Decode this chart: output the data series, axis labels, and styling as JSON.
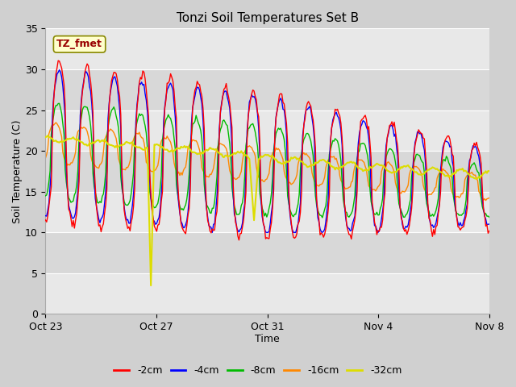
{
  "title": "Tonzi Soil Temperatures Set B",
  "xlabel": "Time",
  "ylabel": "Soil Temperature (C)",
  "ylim": [
    0,
    35
  ],
  "yticks": [
    0,
    5,
    10,
    15,
    20,
    25,
    30,
    35
  ],
  "annotation_text": "TZ_fmet",
  "colors": {
    "-2cm": "#ff0000",
    "-4cm": "#0000ff",
    "-8cm": "#00bb00",
    "-16cm": "#ff8800",
    "-32cm": "#dddd00"
  },
  "legend_labels": [
    "-2cm",
    "-4cm",
    "-8cm",
    "-16cm",
    "-32cm"
  ],
  "x_tick_labels": [
    "Oct 23",
    "Oct 27",
    "Oct 31",
    "Nov 4",
    "Nov 8"
  ],
  "x_tick_positions": [
    0,
    4,
    8,
    12,
    16
  ],
  "total_days": 16
}
